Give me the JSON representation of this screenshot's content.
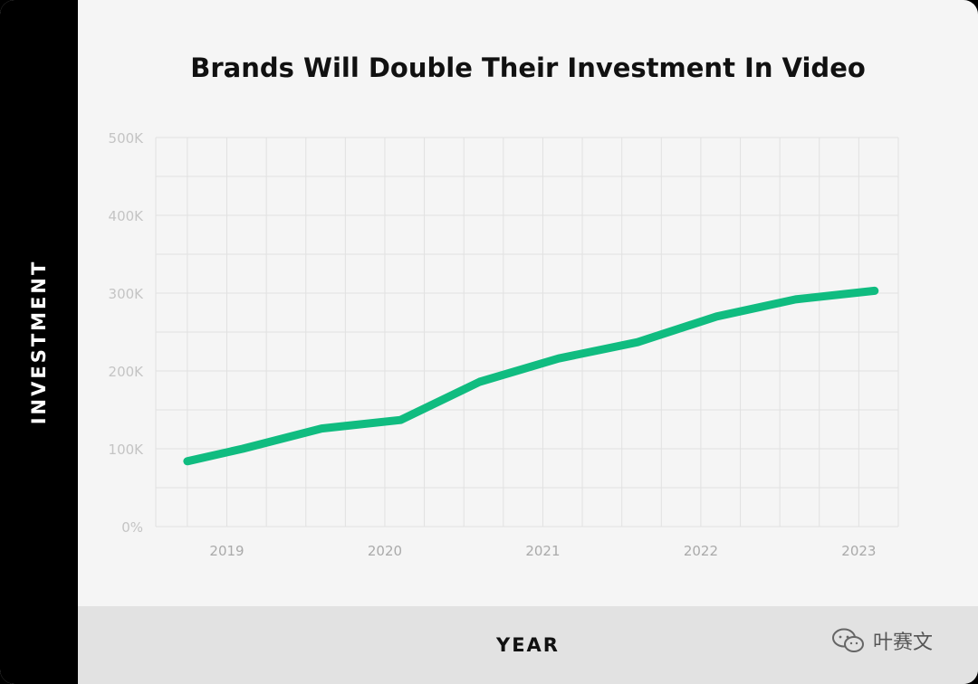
{
  "chart_data": {
    "type": "line",
    "title": "Brands Will Double Their Investment In Video",
    "xlabel": "YEAR",
    "ylabel": "INVESTMENT",
    "x_ticks": [
      "2019",
      "2020",
      "2021",
      "2022",
      "2023"
    ],
    "y_ticks": [
      "0%",
      "100K",
      "200K",
      "300K",
      "400K",
      "500K"
    ],
    "ylim": [
      0,
      500000
    ],
    "xlim": [
      2018.55,
      2023.25
    ],
    "grid": true,
    "color": "#10bc80",
    "series": [
      {
        "x": [
          2018.75,
          2019.1,
          2019.6,
          2020.1,
          2020.6,
          2021.1,
          2021.6,
          2022.1,
          2022.6,
          2023.1
        ],
        "y": [
          84000,
          100000,
          126000,
          137000,
          186000,
          216000,
          237000,
          270000,
          292000,
          303000
        ]
      }
    ]
  },
  "watermark": {
    "icon": "wechat-icon",
    "text": "叶赛文"
  }
}
